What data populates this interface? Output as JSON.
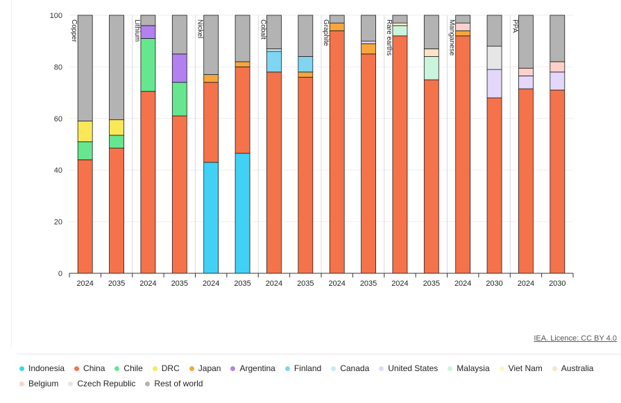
{
  "chart_data": {
    "type": "bar",
    "stacked": true,
    "ylim": [
      0,
      100
    ],
    "yticks": [
      0,
      20,
      40,
      60,
      80,
      100
    ],
    "grid": true,
    "legend_position": "bottom",
    "categories": [
      "2024",
      "2035",
      "2024",
      "2035",
      "2024",
      "2035",
      "2024",
      "2035",
      "2024",
      "2035",
      "2024",
      "2035",
      "2024",
      "2030",
      "2024",
      "2030"
    ],
    "groups": [
      {
        "label": "Copper",
        "start": 0
      },
      {
        "label": "Lithium",
        "start": 2
      },
      {
        "label": "Nickel",
        "start": 4
      },
      {
        "label": "Cobalt",
        "start": 6
      },
      {
        "label": "Graphite",
        "start": 8
      },
      {
        "label": "Rare earths",
        "start": 10
      },
      {
        "label": "Manganese",
        "start": 12
      },
      {
        "label": "PPA",
        "start": 14
      }
    ],
    "series": [
      {
        "name": "Indonesia",
        "color": "#41d1f7",
        "values": [
          0,
          0,
          0,
          0,
          43,
          46.5,
          0,
          0,
          0,
          0,
          0,
          0,
          0,
          0,
          0,
          0
        ]
      },
      {
        "name": "China",
        "color": "#f5734a",
        "values": [
          44,
          48.5,
          70.5,
          61,
          31,
          33.5,
          78,
          76,
          94,
          85,
          92,
          75,
          92,
          68,
          71.5,
          71
        ]
      },
      {
        "name": "Chile",
        "color": "#66e68e",
        "values": [
          7,
          5,
          20.5,
          13,
          0,
          0,
          0,
          0,
          0,
          0,
          0,
          0,
          0,
          0,
          0,
          0
        ]
      },
      {
        "name": "DRC",
        "color": "#fbe859",
        "values": [
          8,
          6,
          0,
          0,
          0,
          0,
          0,
          0,
          0,
          0,
          0,
          0,
          0,
          0,
          0,
          0
        ]
      },
      {
        "name": "Japan",
        "color": "#f7a63c",
        "values": [
          0,
          0,
          0,
          0,
          3,
          2,
          0,
          2,
          3,
          4,
          0,
          0,
          2,
          0,
          0,
          0
        ]
      },
      {
        "name": "Argentina",
        "color": "#b380ef",
        "values": [
          0,
          0,
          5,
          11,
          0,
          0,
          0,
          0,
          0,
          0,
          0,
          0,
          0,
          0,
          0,
          0
        ]
      },
      {
        "name": "Finland",
        "color": "#7fd5f2",
        "values": [
          0,
          0,
          0,
          0,
          0,
          0,
          8,
          6,
          0,
          0,
          0,
          0,
          0,
          0,
          0,
          0
        ]
      },
      {
        "name": "Canada",
        "color": "#c8ecf8",
        "values": [
          0,
          0,
          0,
          0,
          0,
          0,
          1,
          0,
          0,
          0,
          0,
          0,
          0,
          0,
          0,
          0
        ]
      },
      {
        "name": "United States",
        "color": "#e3d7fa",
        "values": [
          0,
          0,
          0,
          0,
          0,
          0,
          0,
          0,
          0,
          1,
          0,
          0,
          0,
          11,
          5,
          7
        ]
      },
      {
        "name": "Malaysia",
        "color": "#cbf4dc",
        "values": [
          0,
          0,
          0,
          0,
          0,
          0,
          0,
          0,
          0,
          0,
          4,
          9,
          0,
          0,
          0,
          0
        ]
      },
      {
        "name": "Viet Nam",
        "color": "#fff5c6",
        "values": [
          0,
          0,
          0,
          0,
          0,
          0,
          0,
          0,
          0,
          0,
          1,
          0,
          0,
          0,
          0,
          0
        ]
      },
      {
        "name": "Australia",
        "color": "#fde3c6",
        "values": [
          0,
          0,
          0,
          0,
          0,
          0,
          0,
          0,
          0,
          0,
          0,
          3,
          0,
          0,
          0,
          0
        ]
      },
      {
        "name": "Belgium",
        "color": "#fdd1cb",
        "values": [
          0,
          0,
          0,
          0,
          0,
          0,
          0,
          0,
          0,
          0,
          0,
          0,
          3,
          0,
          3,
          4
        ]
      },
      {
        "name": "Czech Republic",
        "color": "#e6e6e6",
        "values": [
          0,
          0,
          0,
          0,
          0,
          0,
          0,
          0,
          0,
          0,
          0,
          0,
          0,
          9,
          0,
          0
        ]
      },
      {
        "name": "Rest of world",
        "color": "#b3b3b3",
        "values": [
          41,
          40.5,
          4,
          15,
          23,
          18,
          13,
          16,
          3,
          10,
          3,
          13,
          3,
          12,
          20.5,
          18
        ]
      }
    ]
  },
  "credit": "IEA. Licence: CC BY 4.0"
}
